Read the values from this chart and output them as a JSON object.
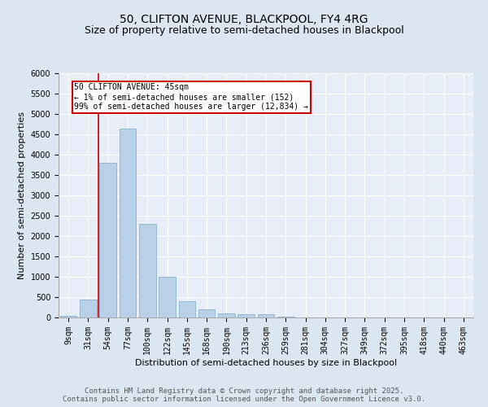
{
  "title1": "50, CLIFTON AVENUE, BLACKPOOL, FY4 4RG",
  "title2": "Size of property relative to semi-detached houses in Blackpool",
  "xlabel": "Distribution of semi-detached houses by size in Blackpool",
  "ylabel": "Number of semi-detached properties",
  "bins": [
    "9sqm",
    "31sqm",
    "54sqm",
    "77sqm",
    "100sqm",
    "122sqm",
    "145sqm",
    "168sqm",
    "190sqm",
    "213sqm",
    "236sqm",
    "259sqm",
    "281sqm",
    "304sqm",
    "327sqm",
    "349sqm",
    "372sqm",
    "395sqm",
    "418sqm",
    "440sqm",
    "463sqm"
  ],
  "values": [
    50,
    450,
    3800,
    4650,
    2300,
    1000,
    400,
    200,
    100,
    75,
    75,
    20,
    5,
    2,
    1,
    1,
    0,
    0,
    0,
    0,
    0
  ],
  "bar_color": "#b8d0e8",
  "bar_edge_color": "#7aaac8",
  "redline_color": "#cc0000",
  "annotation_text": "50 CLIFTON AVENUE: 45sqm\n← 1% of semi-detached houses are smaller (152)\n99% of semi-detached houses are larger (12,834) →",
  "annotation_box_color": "#ffffff",
  "annotation_edge_color": "#cc0000",
  "ylim": [
    0,
    6000
  ],
  "yticks": [
    0,
    500,
    1000,
    1500,
    2000,
    2500,
    3000,
    3500,
    4000,
    4500,
    5000,
    5500,
    6000
  ],
  "footer": "Contains HM Land Registry data © Crown copyright and database right 2025.\nContains public sector information licensed under the Open Government Licence v3.0.",
  "bg_color": "#dce6f0",
  "plot_bg_color": "#e8eef8",
  "title_fontsize": 10,
  "subtitle_fontsize": 9,
  "axis_label_fontsize": 8,
  "tick_fontsize": 7,
  "footer_fontsize": 6.5
}
